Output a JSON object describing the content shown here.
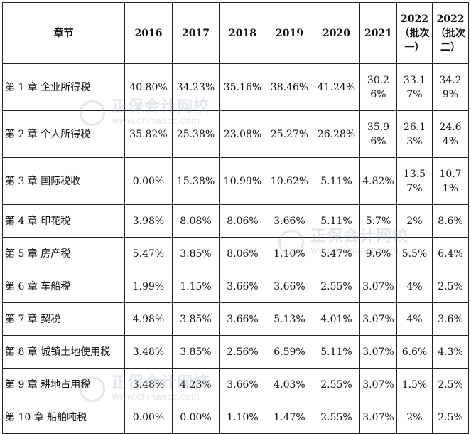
{
  "table": {
    "headers": [
      "章节",
      "2016",
      "2017",
      "2018",
      "2019",
      "2020",
      "2021",
      "2022（批次一）",
      "2022（批次二）"
    ],
    "rows": [
      {
        "chapter": "第 1 章  企业所得税",
        "values": [
          "40.80%",
          "34.23%",
          "35.16%",
          "38.46%",
          "41.24%",
          "30.26%",
          "33.17%",
          "34.29%"
        ]
      },
      {
        "chapter": "第 2 章  个人所得税",
        "values": [
          "35.82%",
          "25.38%",
          "23.08%",
          "25.27%",
          "26.28%",
          "35.96%",
          "26.13%",
          "24.64%"
        ]
      },
      {
        "chapter": "第 3 章  国际税收",
        "values": [
          "0.00%",
          "15.38%",
          "10.99%",
          "10.62%",
          "5.11%",
          "4.82%",
          "13.57%",
          "10.71%"
        ]
      },
      {
        "chapter": "第 4 章  印花税",
        "values": [
          "3.98%",
          "8.08%",
          "8.06%",
          "3.66%",
          "5.11%",
          "5.7%",
          "2%",
          "8.6%"
        ]
      },
      {
        "chapter": "第 5 章  房产税",
        "values": [
          "5.47%",
          "3.85%",
          "8.06%",
          "1.10%",
          "5.47%",
          "9.6%",
          "5.5%",
          "6.4%"
        ]
      },
      {
        "chapter": "第 6 章  车船税",
        "values": [
          "1.99%",
          "1.15%",
          "3.66%",
          "3.66%",
          "2.55%",
          "3.07%",
          "4%",
          "2.5%"
        ]
      },
      {
        "chapter": "第 7 章  契税",
        "values": [
          "4.98%",
          "3.85%",
          "3.66%",
          "5.13%",
          "4.01%",
          "3.07%",
          "4%",
          "3.6%"
        ]
      },
      {
        "chapter": "第 8 章  城镇土地使用税",
        "values": [
          "3.48%",
          "3.85%",
          "2.56%",
          "6.59%",
          "5.11%",
          "3.07%",
          "6.6%",
          "4.3%"
        ]
      },
      {
        "chapter": "第 9 章  耕地占用税",
        "values": [
          "3.48%",
          "4.23%",
          "3.66%",
          "4.03%",
          "2.55%",
          "3.07%",
          "1.5%",
          "2.5%"
        ]
      },
      {
        "chapter": "第 10 章  船舶吨税",
        "values": [
          "0.00%",
          "0.00%",
          "1.10%",
          "1.47%",
          "2.55%",
          "3.07%",
          "2%",
          "2.5%"
        ]
      }
    ]
  },
  "watermark": {
    "name": "正保会计网校",
    "url": "www.chinaacc.com"
  }
}
